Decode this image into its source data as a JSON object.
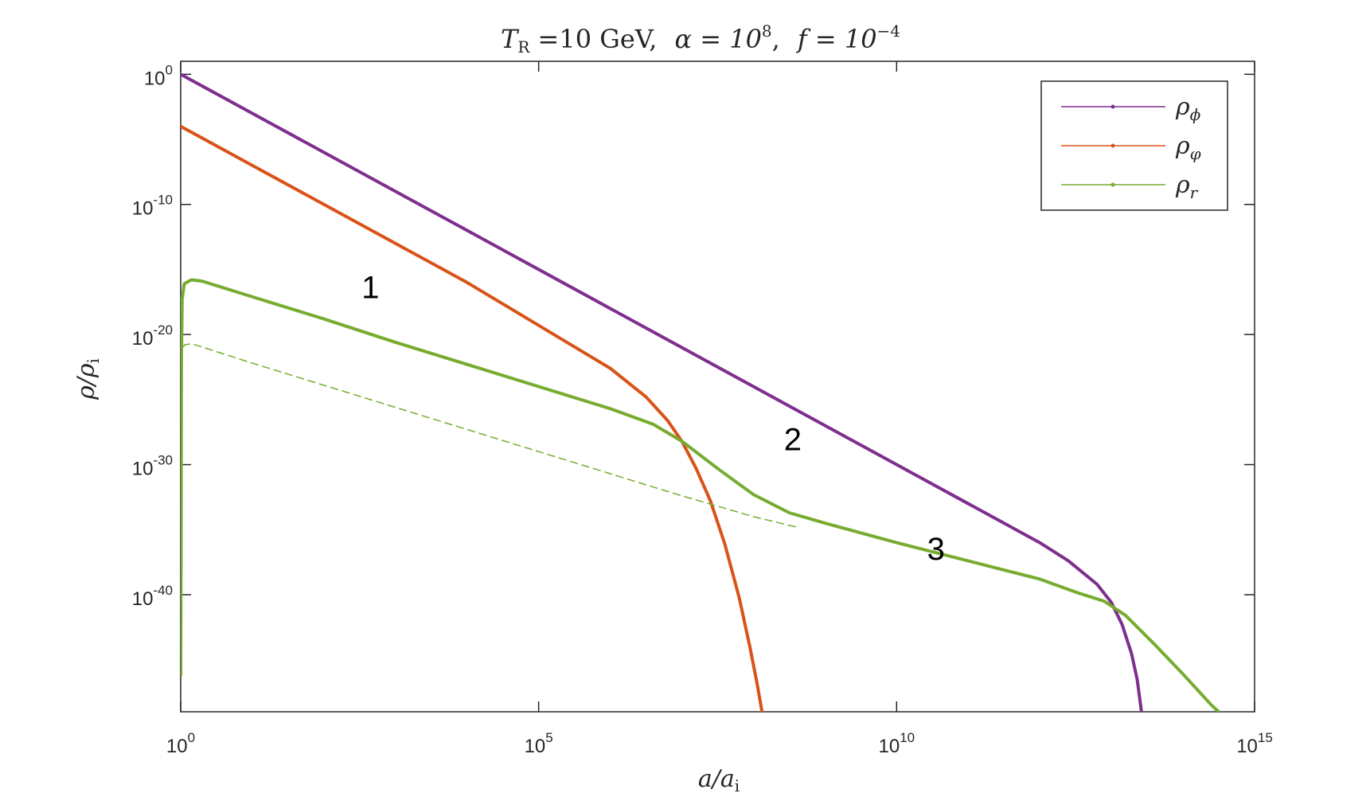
{
  "chart_data": {
    "type": "line",
    "title": {
      "tr_symbol": "T",
      "tr_sub": "R",
      "tr_eq": " =10 GeV,",
      "alpha_text": "α = 10",
      "alpha_exp": "8",
      "f_comma": ",",
      "f_text": "f = 10",
      "f_exp": "−4"
    },
    "xlabel": {
      "main": "a/a",
      "sub": "i"
    },
    "ylabel": {
      "main": "ρ/ρ",
      "sub": "i"
    },
    "xscale": "log",
    "yscale": "log",
    "xlim_log10": [
      0,
      15
    ],
    "ylim_log10": [
      -49,
      1
    ],
    "x_ticks": [
      {
        "base": "10",
        "exp": "0",
        "log10": 0
      },
      {
        "base": "10",
        "exp": "5",
        "log10": 5
      },
      {
        "base": "10",
        "exp": "10",
        "log10": 10
      },
      {
        "base": "10",
        "exp": "15",
        "log10": 15
      }
    ],
    "y_ticks": [
      {
        "base": "10",
        "exp": "0",
        "log10": 0
      },
      {
        "base": "10",
        "exp": "-10",
        "log10": -10
      },
      {
        "base": "10",
        "exp": "-20",
        "log10": -20
      },
      {
        "base": "10",
        "exp": "-30",
        "log10": -30
      },
      {
        "base": "10",
        "exp": "-40",
        "log10": -40
      }
    ],
    "grid": false,
    "legend_position": "top-right",
    "series": [
      {
        "name_symbol": "ρ",
        "name_sub": "ϕ",
        "color": "#7E2F8E",
        "style": "solid",
        "points_log10": [
          [
            0,
            0
          ],
          [
            1,
            -3
          ],
          [
            2,
            -6
          ],
          [
            3,
            -9
          ],
          [
            4,
            -12
          ],
          [
            5,
            -15
          ],
          [
            6,
            -18
          ],
          [
            7,
            -21
          ],
          [
            8,
            -24
          ],
          [
            9,
            -27
          ],
          [
            10,
            -30
          ],
          [
            11,
            -33
          ],
          [
            12,
            -36
          ],
          [
            12.4,
            -37.4
          ],
          [
            12.8,
            -39.2
          ],
          [
            13.0,
            -40.6
          ],
          [
            13.15,
            -42.3
          ],
          [
            13.28,
            -44.5
          ],
          [
            13.36,
            -46.5
          ],
          [
            13.42,
            -49
          ]
        ]
      },
      {
        "name_symbol": "ρ",
        "name_sub": "φ",
        "color": "#D95319",
        "style": "solid",
        "points_log10": [
          [
            0,
            -4
          ],
          [
            1,
            -7
          ],
          [
            2,
            -10
          ],
          [
            3,
            -13
          ],
          [
            4,
            -16
          ],
          [
            5,
            -19.3
          ],
          [
            6,
            -22.6
          ],
          [
            6.5,
            -24.8
          ],
          [
            6.8,
            -26.6
          ],
          [
            7.0,
            -28.2
          ],
          [
            7.2,
            -30.3
          ],
          [
            7.4,
            -32.8
          ],
          [
            7.6,
            -36.1
          ],
          [
            7.8,
            -40.2
          ],
          [
            7.95,
            -44.0
          ],
          [
            8.05,
            -46.8
          ],
          [
            8.12,
            -49
          ]
        ]
      },
      {
        "name_symbol": "ρ",
        "name_sub": "r",
        "color": "#77AC30",
        "style": "solid",
        "points_log10": [
          [
            0,
            -46.2
          ],
          [
            0.005,
            -36
          ],
          [
            0.01,
            -22
          ],
          [
            0.02,
            -17.3
          ],
          [
            0.05,
            -16.1
          ],
          [
            0.15,
            -15.8
          ],
          [
            0.3,
            -15.9
          ],
          [
            1,
            -17.1
          ],
          [
            2,
            -18.8
          ],
          [
            3,
            -20.6
          ],
          [
            4,
            -22.3
          ],
          [
            5,
            -24.0
          ],
          [
            6,
            -25.7
          ],
          [
            6.6,
            -26.9
          ],
          [
            7.0,
            -28.2
          ],
          [
            7.5,
            -30.3
          ],
          [
            8.0,
            -32.3
          ],
          [
            8.5,
            -33.7
          ],
          [
            9.0,
            -34.5
          ],
          [
            10,
            -36.0
          ],
          [
            11,
            -37.4
          ],
          [
            12,
            -38.8
          ],
          [
            12.5,
            -39.8
          ],
          [
            12.9,
            -40.5
          ],
          [
            13.2,
            -41.6
          ],
          [
            13.6,
            -43.8
          ],
          [
            14.0,
            -46.1
          ],
          [
            14.4,
            -48.5
          ],
          [
            14.5,
            -49
          ]
        ]
      },
      {
        "name_symbol": "",
        "name_sub": "",
        "color": "#77AC30",
        "style": "dashed",
        "points_log10": [
          [
            0,
            -31
          ],
          [
            0.01,
            -21.5
          ],
          [
            0.05,
            -20.8
          ],
          [
            0.15,
            -20.7
          ],
          [
            1,
            -22.2
          ],
          [
            2,
            -23.9
          ],
          [
            3,
            -25.6
          ],
          [
            4,
            -27.3
          ],
          [
            5,
            -29.0
          ],
          [
            6,
            -30.7
          ],
          [
            7,
            -32.4
          ],
          [
            8,
            -34.0
          ],
          [
            8.6,
            -34.8
          ]
        ]
      }
    ],
    "annotations": [
      {
        "text": "1",
        "x_log10": 2.65,
        "y_log10": -17.2
      },
      {
        "text": "2",
        "x_log10": 8.55,
        "y_log10": -28.9
      },
      {
        "text": "3",
        "x_log10": 10.55,
        "y_log10": -37.3
      }
    ]
  }
}
